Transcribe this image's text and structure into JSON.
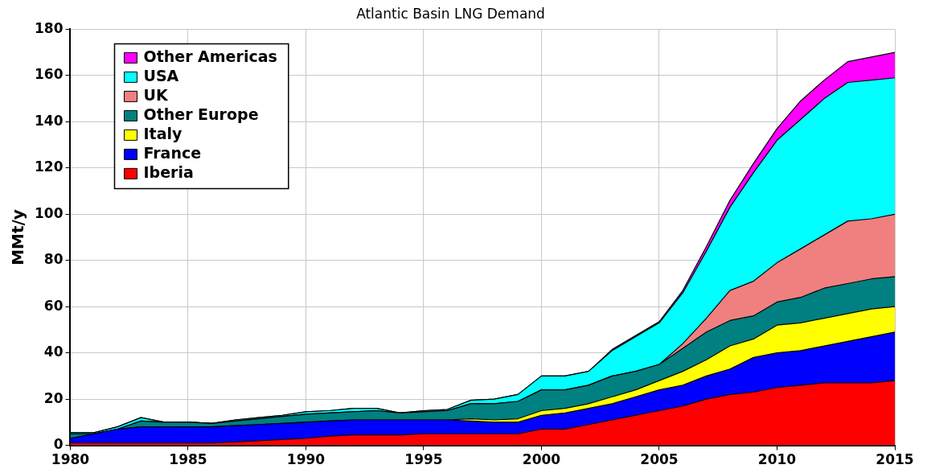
{
  "chart_data": {
    "type": "area",
    "title": "Atlantic Basin LNG Demand",
    "ylabel": "MMt/y",
    "stacked": true,
    "x": [
      1980,
      1981,
      1982,
      1983,
      1984,
      1985,
      1986,
      1987,
      1988,
      1989,
      1990,
      1991,
      1992,
      1993,
      1994,
      1995,
      1996,
      1997,
      1998,
      1999,
      2000,
      2001,
      2002,
      2003,
      2004,
      2005,
      2006,
      2007,
      2008,
      2009,
      2010,
      2011,
      2012,
      2013,
      2014,
      2015
    ],
    "xlim": [
      1980,
      2015
    ],
    "xticks": [
      1980,
      1985,
      1990,
      1995,
      2000,
      2005,
      2010,
      2015
    ],
    "ylim": [
      0,
      180
    ],
    "yticks": [
      0,
      20,
      40,
      60,
      80,
      100,
      120,
      140,
      160,
      180
    ],
    "grid": true,
    "legend": "top left",
    "marker": "none",
    "series": [
      {
        "name": "Iberia",
        "color": "#ff0000",
        "values": [
          1,
          1,
          1,
          1,
          1,
          1,
          1,
          1.5,
          2,
          2.5,
          3,
          4,
          4.5,
          4.5,
          4.5,
          5,
          5,
          5,
          5,
          5,
          7,
          7,
          9,
          11,
          13,
          15,
          17,
          20,
          22,
          23,
          25,
          26,
          27,
          27,
          27,
          28
        ]
      },
      {
        "name": "France",
        "color": "#0000ff",
        "values": [
          2,
          4,
          6,
          7,
          7,
          7,
          7,
          7,
          7,
          7,
          7,
          6.5,
          6.5,
          6.5,
          6.5,
          6,
          6,
          5.5,
          5,
          5,
          6,
          7,
          7,
          7,
          8,
          9,
          9,
          10,
          11,
          15,
          15,
          15,
          16,
          18,
          20,
          21
        ]
      },
      {
        "name": "Italy",
        "color": "#ffff00",
        "values": [
          0,
          0,
          0,
          0,
          0,
          0,
          0,
          0,
          0,
          0,
          0,
          0,
          0,
          0,
          0,
          0,
          0,
          1,
          1,
          1.5,
          2,
          2,
          2,
          3,
          3,
          4,
          6,
          7,
          10,
          8,
          12,
          12,
          12,
          12,
          12,
          11
        ]
      },
      {
        "name": "Other Europe",
        "color": "#008080",
        "values": [
          2,
          0,
          0,
          2.5,
          2,
          2,
          1.5,
          2,
          2.5,
          3,
          3.5,
          3.5,
          3.5,
          4,
          3,
          3.5,
          4,
          6.5,
          7,
          7.5,
          9,
          8,
          8,
          9,
          8,
          7,
          10,
          12,
          11,
          10,
          10,
          11,
          13,
          13,
          13,
          13
        ]
      },
      {
        "name": "UK",
        "color": "#f08080",
        "values": [
          0,
          0,
          0,
          0,
          0,
          0,
          0,
          0,
          0,
          0,
          0,
          0,
          0,
          0,
          0,
          0,
          0,
          0,
          0,
          0,
          0,
          0,
          0,
          0,
          0,
          0,
          2,
          6,
          13,
          15,
          17,
          21,
          23,
          27,
          26,
          27
        ]
      },
      {
        "name": "USA",
        "color": "#00ffff",
        "values": [
          0.5,
          0.5,
          1,
          1.5,
          0,
          0,
          0,
          0.5,
          0.5,
          0.5,
          1,
          1,
          1.5,
          1,
          0,
          0.5,
          0.5,
          1.5,
          2,
          3,
          6,
          6,
          6,
          11,
          15,
          18,
          22,
          29,
          36,
          47,
          53,
          56,
          59,
          60,
          60,
          59
        ]
      },
      {
        "name": "Other Americas",
        "color": "#ff00ff",
        "values": [
          0,
          0,
          0,
          0,
          0,
          0,
          0,
          0,
          0,
          0,
          0,
          0,
          0,
          0,
          0,
          0,
          0,
          0,
          0,
          0,
          0,
          0,
          0,
          0.5,
          0.5,
          0.5,
          1,
          2,
          3,
          4,
          5,
          8,
          8,
          9,
          10,
          11
        ]
      }
    ]
  }
}
